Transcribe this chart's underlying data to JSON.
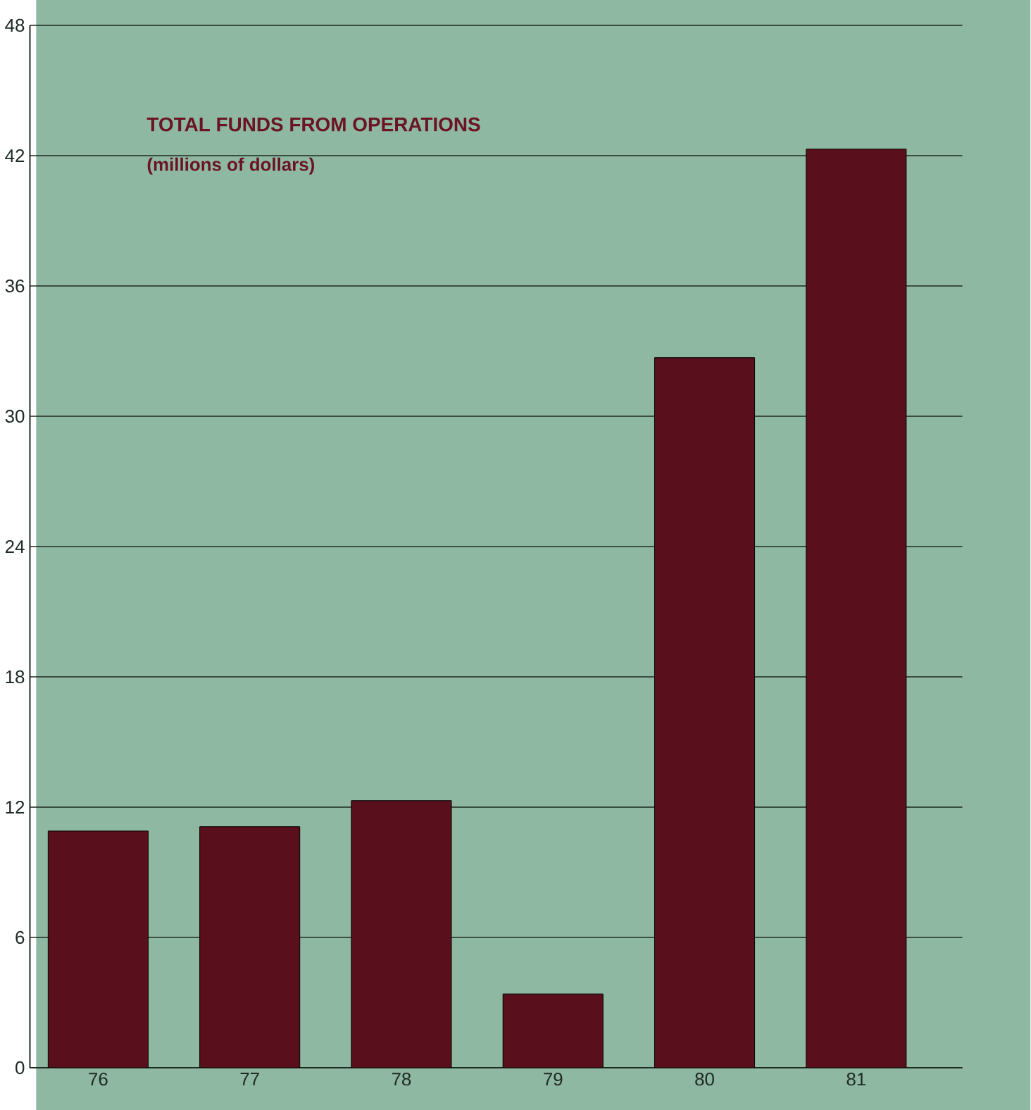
{
  "chart_data": {
    "type": "bar",
    "title": "TOTAL FUNDS FROM OPERATIONS",
    "subtitle": "(millions of dollars)",
    "categories": [
      "76",
      "77",
      "78",
      "79",
      "80",
      "81"
    ],
    "values": [
      10.9,
      11.1,
      12.3,
      3.4,
      32.7,
      42.3
    ],
    "color": "#5a0f1c",
    "ylim": [
      0,
      48
    ],
    "yticks": [
      0,
      6,
      12,
      18,
      24,
      30,
      36,
      42,
      48
    ],
    "grid": "y"
  }
}
